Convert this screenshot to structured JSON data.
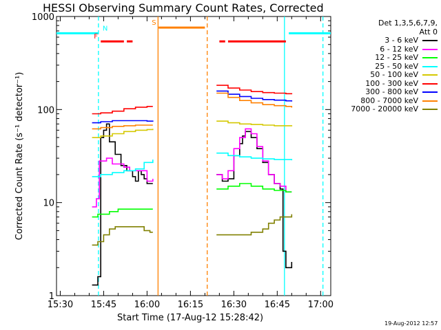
{
  "chart_data": {
    "type": "line",
    "title": "HESSI Observing Summary Count Rates, Corrected",
    "xlabel": "Start Time (17-Aug-12 15:28:42)",
    "ylabel": "Corrected Count Rate (s⁻¹ detector⁻¹)",
    "y_scale": "log",
    "ylim": [
      1,
      1000
    ],
    "xlim_minutes_from_1530": [
      -1.3,
      93.5
    ],
    "x_ticks": [
      "15:30",
      "15:45",
      "16:00",
      "16:15",
      "16:30",
      "16:45",
      "17:00"
    ],
    "y_ticks": [
      "1",
      "10",
      "100",
      "1000"
    ],
    "legend_header": [
      "Det 1,3,5,6,7,9,",
      "Att 0"
    ],
    "timestamp": "19-Aug-2012 12:57",
    "x_unit": "minutes after 15:30",
    "series": [
      {
        "name": "3 - 6 keV",
        "color": "#000000",
        "segments": [
          [
            [
              11.0,
              1.3
            ],
            [
              13.0,
              1.6
            ],
            [
              14.0,
              50
            ],
            [
              15.0,
              60
            ],
            [
              16.0,
              70
            ],
            [
              17.0,
              45
            ],
            [
              19.0,
              33
            ],
            [
              21.0,
              25
            ],
            [
              23.0,
              22
            ],
            [
              25.0,
              19
            ],
            [
              26.0,
              17
            ],
            [
              27.0,
              22
            ],
            [
              28.0,
              20
            ],
            [
              29.0,
              18
            ],
            [
              30.0,
              16
            ],
            [
              32.0,
              16
            ]
          ],
          [
            [
              54.0,
              20
            ],
            [
              56.0,
              17
            ],
            [
              58.0,
              18
            ],
            [
              60.0,
              32
            ],
            [
              62.0,
              43
            ],
            [
              63.0,
              52
            ],
            [
              64.0,
              58
            ],
            [
              66.0,
              50
            ],
            [
              68.0,
              38
            ],
            [
              70.0,
              27
            ],
            [
              72.0,
              20
            ],
            [
              74.0,
              16
            ],
            [
              76.0,
              14
            ],
            [
              76.8,
              14
            ],
            [
              77.0,
              3
            ],
            [
              78.0,
              2
            ],
            [
              80.0,
              2.3
            ]
          ]
        ]
      },
      {
        "name": "6 - 12 keV",
        "color": "#ff00ff",
        "segments": [
          [
            [
              11.0,
              9
            ],
            [
              12.5,
              11
            ],
            [
              13.5,
              28
            ],
            [
              14.0,
              28
            ],
            [
              15.0,
              28
            ],
            [
              16.0,
              30
            ],
            [
              18.0,
              26
            ],
            [
              20.0,
              26
            ],
            [
              22.0,
              24
            ],
            [
              24.0,
              22
            ],
            [
              26.0,
              22
            ],
            [
              28.0,
              22
            ],
            [
              30.0,
              17
            ],
            [
              32.0,
              18
            ]
          ],
          [
            [
              54.0,
              20
            ],
            [
              56.0,
              18
            ],
            [
              58.0,
              22
            ],
            [
              60.0,
              38
            ],
            [
              62.0,
              50
            ],
            [
              64.0,
              62
            ],
            [
              66.0,
              55
            ],
            [
              68.0,
              40
            ],
            [
              70.0,
              28
            ],
            [
              72.0,
              20
            ],
            [
              74.0,
              16
            ],
            [
              76.0,
              15
            ],
            [
              78.0,
              13
            ],
            [
              80.0,
              13
            ]
          ]
        ]
      },
      {
        "name": "12 - 25 keV",
        "color": "#00ff00",
        "segments": [
          [
            [
              11.0,
              7
            ],
            [
              13.0,
              7.5
            ],
            [
              15.0,
              7.5
            ],
            [
              17.0,
              8
            ],
            [
              20.0,
              8.5
            ],
            [
              24.0,
              8.5
            ],
            [
              28.0,
              8.5
            ],
            [
              32.0,
              8.5
            ]
          ],
          [
            [
              54.0,
              14
            ],
            [
              58.0,
              15
            ],
            [
              62.0,
              16
            ],
            [
              66.0,
              15
            ],
            [
              70.0,
              14
            ],
            [
              74.0,
              13.5
            ],
            [
              78.0,
              13
            ],
            [
              80.0,
              13
            ]
          ]
        ]
      },
      {
        "name": "25 - 50 keV",
        "color": "#00ffff",
        "segments": [
          [
            [
              11.0,
              19
            ],
            [
              14.0,
              20
            ],
            [
              18.0,
              21
            ],
            [
              22.0,
              22
            ],
            [
              26.0,
              23
            ],
            [
              29.0,
              27
            ],
            [
              32.0,
              29
            ]
          ],
          [
            [
              54.0,
              34
            ],
            [
              58.0,
              32
            ],
            [
              62.0,
              31
            ],
            [
              66.0,
              30
            ],
            [
              70.0,
              29.5
            ],
            [
              74.0,
              29
            ],
            [
              78.0,
              29
            ],
            [
              80.0,
              28.5
            ]
          ]
        ]
      },
      {
        "name": "50 - 100 keV",
        "color": "#d4c800",
        "segments": [
          [
            [
              11.0,
              50
            ],
            [
              14.0,
              52
            ],
            [
              18.0,
              55
            ],
            [
              22.0,
              58
            ],
            [
              26.0,
              60
            ],
            [
              30.0,
              61
            ],
            [
              32.0,
              62
            ]
          ],
          [
            [
              54.0,
              75
            ],
            [
              58.0,
              72
            ],
            [
              62.0,
              70
            ],
            [
              66.0,
              69
            ],
            [
              70.0,
              68
            ],
            [
              74.0,
              67
            ],
            [
              78.0,
              67
            ],
            [
              80.0,
              66
            ]
          ]
        ]
      },
      {
        "name": "100 - 300 keV",
        "color": "#ff0000",
        "segments": [
          [
            [
              11.0,
              90
            ],
            [
              14.0,
              92
            ],
            [
              18.0,
              96
            ],
            [
              22.0,
              102
            ],
            [
              26.0,
              106
            ],
            [
              30.0,
              108
            ],
            [
              32.0,
              108
            ]
          ],
          [
            [
              54.0,
              182
            ],
            [
              58.0,
              170
            ],
            [
              62.0,
              162
            ],
            [
              66.0,
              156
            ],
            [
              70.0,
              152
            ],
            [
              74.0,
              150
            ],
            [
              78.0,
              148
            ],
            [
              80.0,
              146
            ]
          ]
        ]
      },
      {
        "name": "300 - 800 keV",
        "color": "#0000ff",
        "segments": [
          [
            [
              11.0,
              72
            ],
            [
              14.0,
              74
            ],
            [
              18.0,
              76
            ],
            [
              22.0,
              76
            ],
            [
              26.0,
              76
            ],
            [
              30.0,
              75
            ],
            [
              32.0,
              74
            ]
          ],
          [
            [
              54.0,
              158
            ],
            [
              58.0,
              146
            ],
            [
              62.0,
              138
            ],
            [
              66.0,
              132
            ],
            [
              70.0,
              128
            ],
            [
              74.0,
              126
            ],
            [
              78.0,
              124
            ],
            [
              80.0,
              122
            ]
          ]
        ]
      },
      {
        "name": "800 - 7000 keV",
        "color": "#ff8000",
        "segments": [
          [
            [
              11.0,
              62
            ],
            [
              14.0,
              64
            ],
            [
              18.0,
              66
            ],
            [
              22.0,
              67
            ],
            [
              26.0,
              68
            ],
            [
              30.0,
              68
            ],
            [
              32.0,
              68
            ]
          ],
          [
            [
              54.0,
              150
            ],
            [
              58.0,
              135
            ],
            [
              62.0,
              125
            ],
            [
              66.0,
              118
            ],
            [
              70.0,
              113
            ],
            [
              74.0,
              110
            ],
            [
              78.0,
              108
            ],
            [
              80.0,
              105
            ]
          ]
        ]
      },
      {
        "name": "7000 - 20000 keV",
        "color": "#808000",
        "segments": [
          [
            [
              11.0,
              3.5
            ],
            [
              13.0,
              3.8
            ],
            [
              15.0,
              4.5
            ],
            [
              17.0,
              5.2
            ],
            [
              19.0,
              5.5
            ],
            [
              22.0,
              5.5
            ],
            [
              26.0,
              5.5
            ],
            [
              29.0,
              5.0
            ],
            [
              31.0,
              4.8
            ],
            [
              32.0,
              4.8
            ]
          ],
          [
            [
              54.0,
              4.5
            ],
            [
              58.0,
              4.5
            ],
            [
              62.0,
              4.5
            ],
            [
              66.0,
              4.8
            ],
            [
              70.0,
              5.2
            ],
            [
              72.0,
              6.0
            ],
            [
              74.0,
              6.5
            ],
            [
              76.0,
              7.0
            ],
            [
              78.0,
              7.0
            ],
            [
              80.0,
              7.5
            ]
          ]
        ]
      }
    ],
    "flags": [
      {
        "label": "N",
        "color": "#00ffff",
        "level": 660,
        "segments": [
          [
            -1.3,
            13.2
          ],
          [
            79.0,
            93.5
          ]
        ]
      },
      {
        "label": "S",
        "color": "#ff8000",
        "level": 760,
        "segments": [
          [
            34.0,
            50.0
          ]
        ]
      },
      {
        "label": "F",
        "color": "#ff0000",
        "level": 540,
        "segments": [
          [
            14.0,
            22.0
          ],
          [
            23.0,
            25.0
          ],
          [
            55.0,
            57.0
          ],
          [
            58.0,
            78.0
          ]
        ]
      }
    ],
    "markers": [
      {
        "kind": "cyan-dashed",
        "color": "#00ffff",
        "x": 13.2,
        "style": "dashed"
      },
      {
        "kind": "orange-solid",
        "color": "#ff8000",
        "x": 33.8,
        "style": "solid"
      },
      {
        "kind": "orange-dashed",
        "color": "#ff8000",
        "x": 50.8,
        "style": "dashed"
      },
      {
        "kind": "cyan-solid",
        "color": "#00ffff",
        "x": 77.5,
        "style": "solid"
      },
      {
        "kind": "cyan-dashed",
        "color": "#00ffff",
        "x": 90.8,
        "style": "dashed"
      }
    ]
  }
}
